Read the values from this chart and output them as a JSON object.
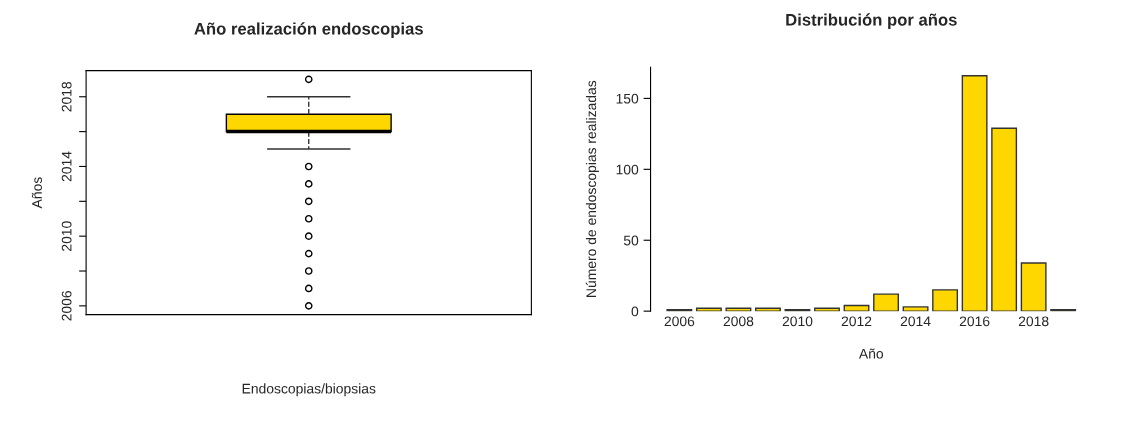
{
  "chart_data": [
    {
      "type": "box",
      "title": "Año realización endoscopias",
      "xlabel": "Endoscopias/biopsias",
      "ylabel": "Años",
      "categories": [
        null
      ],
      "color": "#ffd700",
      "boxes": [
        {
          "low": 2015,
          "q1": 2016,
          "median": 2016,
          "q3": 2017,
          "high": 2018,
          "outliers": [
            2006,
            2007,
            2008,
            2009,
            2010,
            2011,
            2012,
            2013,
            2014,
            2019
          ]
        }
      ],
      "ylim": [
        2005.5,
        2019.5
      ],
      "yticks": [
        2006,
        {
          "value": 2008,
          "label": null
        },
        2010,
        {
          "value": 2012,
          "label": null
        },
        2014,
        {
          "value": 2016,
          "label": null
        },
        2018
      ],
      "grid": false
    },
    {
      "type": "bar",
      "title": "Distribución por años",
      "xlabel": "Año",
      "ylabel": "Número de endoscopias realizadas",
      "color": "#ffd700",
      "categories": [
        "2006",
        null,
        "2008",
        null,
        "2010",
        null,
        "2012",
        null,
        "2014",
        null,
        "2016",
        null,
        "2018",
        null
      ],
      "values": [
        1,
        2,
        2,
        2,
        1,
        2,
        4,
        12,
        3,
        15,
        166,
        129,
        34,
        1
      ],
      "ylim": [
        0,
        172
      ],
      "yticks": [
        0,
        50,
        100,
        150
      ],
      "grid": false
    }
  ]
}
